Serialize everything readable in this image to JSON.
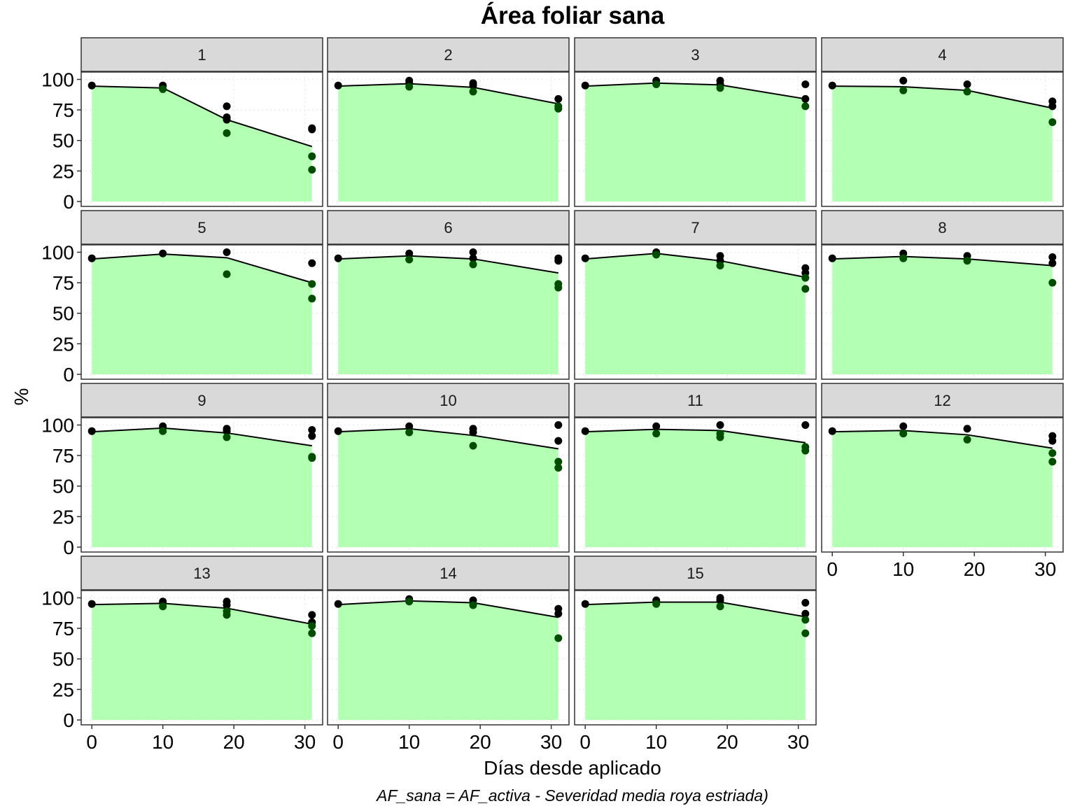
{
  "chart_data": {
    "type": "area",
    "title": "Área foliar sana",
    "xlabel": "Días desde aplicado",
    "ylabel": "%",
    "caption": "AF_sana = AF_activa - Severidad media roya estriada)",
    "xlim": [
      -1.5,
      32.5
    ],
    "ylim": [
      -4,
      106
    ],
    "x_ticks": [
      0,
      10,
      20,
      30
    ],
    "y_ticks": [
      0,
      25,
      50,
      75,
      100
    ],
    "grid": true,
    "grid_style": "dotted",
    "facet_columns": 4,
    "colors": {
      "fill": "#b3ffb3",
      "line": "#000000",
      "point_dark": "#000000",
      "point_green": "#004d00",
      "strip": "#d9d9d9",
      "grid": "#ebebeb"
    },
    "panels": [
      {
        "label": "1",
        "line": [
          [
            0,
            94.5
          ],
          [
            10,
            93
          ],
          [
            19,
            67
          ],
          [
            31,
            45
          ]
        ],
        "points": [
          [
            0,
            95
          ],
          [
            10,
            95
          ],
          [
            10,
            92
          ],
          [
            19,
            78
          ],
          [
            19,
            69
          ],
          [
            19,
            67
          ],
          [
            19,
            56
          ],
          [
            31,
            60
          ],
          [
            31,
            59
          ],
          [
            31,
            37
          ],
          [
            31,
            26
          ]
        ]
      },
      {
        "label": "2",
        "line": [
          [
            0,
            94.5
          ],
          [
            10,
            96.5
          ],
          [
            19,
            93.5
          ],
          [
            31,
            80
          ]
        ],
        "points": [
          [
            0,
            95
          ],
          [
            10,
            99
          ],
          [
            10,
            97
          ],
          [
            10,
            94
          ],
          [
            19,
            97
          ],
          [
            19,
            95
          ],
          [
            19,
            90
          ],
          [
            31,
            84
          ],
          [
            31,
            78
          ],
          [
            31,
            76
          ]
        ]
      },
      {
        "label": "3",
        "line": [
          [
            0,
            94.5
          ],
          [
            10,
            97
          ],
          [
            19,
            95.5
          ],
          [
            31,
            84
          ]
        ],
        "points": [
          [
            0,
            95
          ],
          [
            10,
            99
          ],
          [
            10,
            96
          ],
          [
            19,
            99
          ],
          [
            19,
            96
          ],
          [
            19,
            93
          ],
          [
            31,
            96
          ],
          [
            31,
            84
          ],
          [
            31,
            78
          ]
        ]
      },
      {
        "label": "4",
        "line": [
          [
            0,
            94.5
          ],
          [
            10,
            94
          ],
          [
            19,
            91
          ],
          [
            31,
            76.5
          ]
        ],
        "points": [
          [
            0,
            95
          ],
          [
            10,
            99
          ],
          [
            10,
            91
          ],
          [
            19,
            96
          ],
          [
            19,
            90
          ],
          [
            31,
            82
          ],
          [
            31,
            78
          ],
          [
            31,
            65
          ]
        ]
      },
      {
        "label": "5",
        "line": [
          [
            0,
            94.5
          ],
          [
            10,
            98.5
          ],
          [
            19,
            95.5
          ],
          [
            31,
            75
          ]
        ],
        "points": [
          [
            0,
            95
          ],
          [
            10,
            99
          ],
          [
            19,
            100
          ],
          [
            19,
            82
          ],
          [
            31,
            91
          ],
          [
            31,
            74
          ],
          [
            31,
            62
          ]
        ]
      },
      {
        "label": "6",
        "line": [
          [
            0,
            94.5
          ],
          [
            10,
            97
          ],
          [
            19,
            94.5
          ],
          [
            31,
            83
          ]
        ],
        "points": [
          [
            0,
            95
          ],
          [
            10,
            99
          ],
          [
            10,
            94
          ],
          [
            19,
            100
          ],
          [
            19,
            95
          ],
          [
            19,
            90
          ],
          [
            31,
            95
          ],
          [
            31,
            93
          ],
          [
            31,
            74
          ],
          [
            31,
            71
          ]
        ]
      },
      {
        "label": "7",
        "line": [
          [
            0,
            94.5
          ],
          [
            10,
            99
          ],
          [
            19,
            93
          ],
          [
            31,
            79.5
          ]
        ],
        "points": [
          [
            0,
            95
          ],
          [
            10,
            100
          ],
          [
            10,
            98
          ],
          [
            19,
            97
          ],
          [
            19,
            93
          ],
          [
            19,
            89
          ],
          [
            31,
            87
          ],
          [
            31,
            83
          ],
          [
            31,
            79
          ],
          [
            31,
            70
          ]
        ]
      },
      {
        "label": "8",
        "line": [
          [
            0,
            94.5
          ],
          [
            10,
            96.5
          ],
          [
            19,
            94.5
          ],
          [
            31,
            89
          ]
        ],
        "points": [
          [
            0,
            95
          ],
          [
            10,
            99
          ],
          [
            10,
            95
          ],
          [
            19,
            97
          ],
          [
            19,
            93
          ],
          [
            31,
            96
          ],
          [
            31,
            91
          ],
          [
            31,
            75
          ]
        ]
      },
      {
        "label": "9",
        "line": [
          [
            0,
            94.5
          ],
          [
            10,
            97.5
          ],
          [
            19,
            93.5
          ],
          [
            31,
            83
          ]
        ],
        "points": [
          [
            0,
            95
          ],
          [
            10,
            99
          ],
          [
            10,
            95
          ],
          [
            19,
            97
          ],
          [
            19,
            95
          ],
          [
            19,
            90
          ],
          [
            31,
            96
          ],
          [
            31,
            91
          ],
          [
            31,
            74
          ],
          [
            31,
            73
          ]
        ]
      },
      {
        "label": "10",
        "line": [
          [
            0,
            94.5
          ],
          [
            10,
            97
          ],
          [
            19,
            91.5
          ],
          [
            31,
            80.5
          ]
        ],
        "points": [
          [
            0,
            95
          ],
          [
            10,
            99
          ],
          [
            10,
            94
          ],
          [
            19,
            97
          ],
          [
            19,
            94
          ],
          [
            19,
            83
          ],
          [
            31,
            100
          ],
          [
            31,
            87
          ],
          [
            31,
            70
          ],
          [
            31,
            65
          ]
        ]
      },
      {
        "label": "11",
        "line": [
          [
            0,
            94.5
          ],
          [
            10,
            96.5
          ],
          [
            19,
            95.5
          ],
          [
            31,
            85.5
          ]
        ],
        "points": [
          [
            0,
            95
          ],
          [
            10,
            99
          ],
          [
            10,
            93
          ],
          [
            19,
            100
          ],
          [
            19,
            93
          ],
          [
            19,
            90
          ],
          [
            31,
            100
          ],
          [
            31,
            82
          ],
          [
            31,
            79
          ]
        ]
      },
      {
        "label": "12",
        "line": [
          [
            0,
            94.5
          ],
          [
            10,
            95.5
          ],
          [
            19,
            92
          ],
          [
            31,
            81
          ]
        ],
        "points": [
          [
            0,
            95
          ],
          [
            10,
            99
          ],
          [
            10,
            93
          ],
          [
            19,
            97
          ],
          [
            19,
            88
          ],
          [
            31,
            91
          ],
          [
            31,
            87
          ],
          [
            31,
            77
          ],
          [
            31,
            70
          ]
        ]
      },
      {
        "label": "13",
        "line": [
          [
            0,
            94.5
          ],
          [
            10,
            95.5
          ],
          [
            19,
            91.5
          ],
          [
            31,
            78.5
          ]
        ],
        "points": [
          [
            0,
            95
          ],
          [
            10,
            97
          ],
          [
            10,
            93
          ],
          [
            19,
            97
          ],
          [
            19,
            94
          ],
          [
            19,
            89
          ],
          [
            19,
            86
          ],
          [
            31,
            86
          ],
          [
            31,
            80
          ],
          [
            31,
            77
          ],
          [
            31,
            71
          ]
        ]
      },
      {
        "label": "14",
        "line": [
          [
            0,
            94.5
          ],
          [
            10,
            97.5
          ],
          [
            19,
            96
          ],
          [
            31,
            84
          ]
        ],
        "points": [
          [
            0,
            95
          ],
          [
            10,
            99
          ],
          [
            10,
            97
          ],
          [
            19,
            98
          ],
          [
            19,
            94
          ],
          [
            31,
            91
          ],
          [
            31,
            87
          ],
          [
            31,
            67
          ]
        ]
      },
      {
        "label": "15",
        "line": [
          [
            0,
            94.5
          ],
          [
            10,
            96.5
          ],
          [
            19,
            96.5
          ],
          [
            31,
            84.5
          ]
        ],
        "points": [
          [
            0,
            95
          ],
          [
            10,
            98
          ],
          [
            10,
            95
          ],
          [
            19,
            100
          ],
          [
            19,
            98
          ],
          [
            19,
            93
          ],
          [
            31,
            96
          ],
          [
            31,
            87
          ],
          [
            31,
            82
          ],
          [
            31,
            71
          ]
        ]
      }
    ]
  }
}
